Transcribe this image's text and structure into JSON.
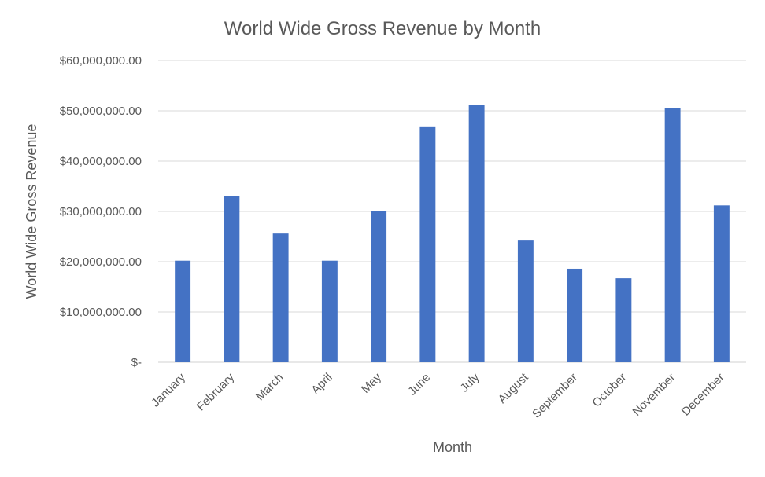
{
  "chart_data": {
    "type": "bar",
    "title": "World Wide Gross Revenue by Month",
    "xlabel": "Month",
    "ylabel": "World Wide Gross Revenue",
    "categories": [
      "January",
      "February",
      "March",
      "April",
      "May",
      "June",
      "July",
      "August",
      "September",
      "October",
      "November",
      "December"
    ],
    "values": [
      20200000,
      33100000,
      25600000,
      20200000,
      30000000,
      46900000,
      51200000,
      24200000,
      18600000,
      16700000,
      50600000,
      31200000
    ],
    "ylim": [
      0,
      60000000
    ],
    "yticks": [
      0,
      10000000,
      20000000,
      30000000,
      40000000,
      50000000,
      60000000
    ],
    "ytick_labels": [
      "$-",
      "$10,000,000.00",
      "$20,000,000.00",
      "$30,000,000.00",
      "$40,000,000.00",
      "$50,000,000.00",
      "$60,000,000.00"
    ],
    "grid": true,
    "legend": "none",
    "bar_color": "#4472C4"
  }
}
